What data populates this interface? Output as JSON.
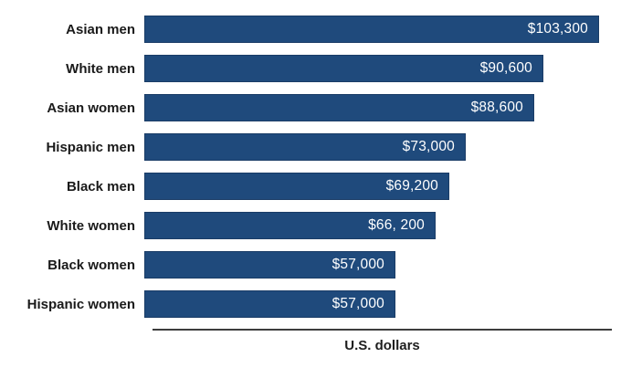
{
  "chart_data": {
    "type": "bar",
    "orientation": "horizontal",
    "title": "",
    "xlabel": "U.S. dollars",
    "ylabel": "",
    "categories": [
      "Asian men",
      "White men",
      "Asian women",
      "Hispanic men",
      "Black men",
      "White women",
      "Black women",
      "Hispanic women"
    ],
    "values": [
      103300,
      90600,
      88600,
      73000,
      69200,
      66200,
      57000,
      57000
    ],
    "value_labels": [
      "$103,300",
      "$90,600",
      "$88,600",
      "$73,000",
      "$69,200",
      "$66, 200",
      "$57,000",
      "$57,000"
    ],
    "xlim": [
      0,
      103300
    ],
    "grid": false,
    "legend": "none",
    "colors": {
      "bar_fill": "#1f4a7c",
      "bar_border": "#1a3c66",
      "value_label_text": "#ffffff",
      "category_label_text": "#1a1a1a",
      "axis_line": "#3d3d3d",
      "background": "#ffffff"
    }
  }
}
